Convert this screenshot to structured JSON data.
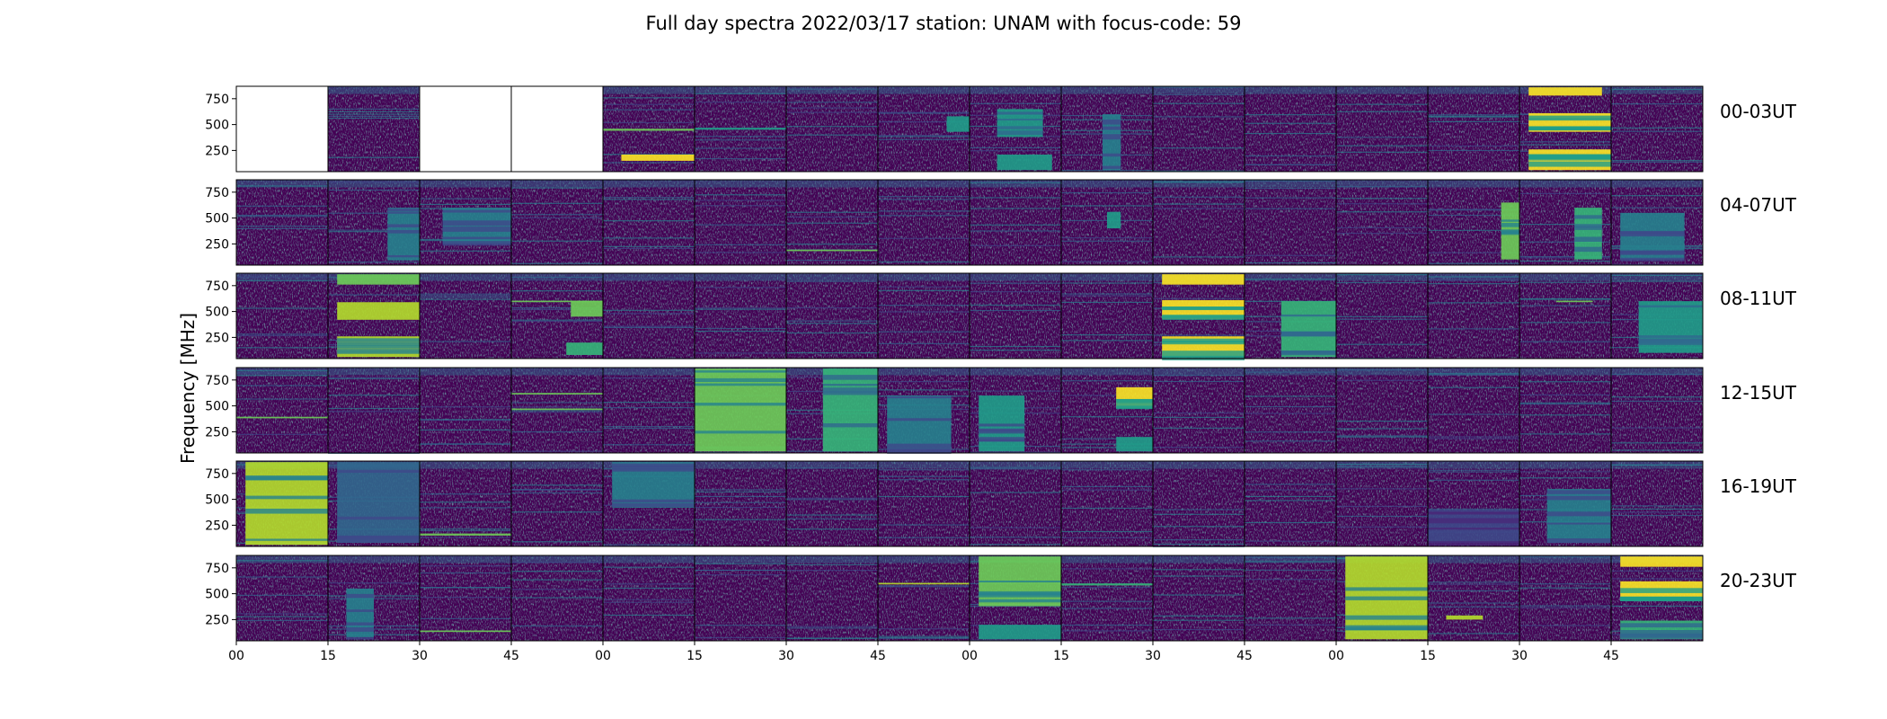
{
  "chart_data": {
    "type": "heatmap",
    "title": "Full day spectra 2022/03/17 station: UNAM with focus-code: 59",
    "ylabel": "Frequency [MHz]",
    "xlabel": "",
    "y_ticks": [
      "750",
      "500",
      "250"
    ],
    "y_tick_values": [
      750,
      500,
      250
    ],
    "ylim": [
      45,
      870
    ],
    "x_ticks": [
      "00",
      "15",
      "30",
      "45",
      "00",
      "15",
      "30",
      "45",
      "00",
      "15",
      "30",
      "45",
      "00",
      "15",
      "30",
      "45"
    ],
    "colormap": "viridis",
    "grid": false,
    "rows": [
      {
        "label": "00-03UT",
        "empty_panels": [
          0,
          2,
          3
        ],
        "bright": [
          {
            "panel": 4,
            "f0": 150,
            "f1": 210,
            "t0": 0.2,
            "t1": 1.0,
            "i": 0.95
          },
          {
            "panel": 4,
            "f0": 440,
            "f1": 460,
            "t0": 0.0,
            "t1": 1.0,
            "i": 0.8
          },
          {
            "panel": 5,
            "f0": 450,
            "f1": 470,
            "t0": 0.0,
            "t1": 1.0,
            "i": 0.6
          },
          {
            "panel": 7,
            "f0": 430,
            "f1": 580,
            "t0": 0.75,
            "t1": 1.0,
            "i": 0.6
          },
          {
            "panel": 8,
            "f0": 380,
            "f1": 650,
            "t0": 0.3,
            "t1": 0.8,
            "i": 0.55
          },
          {
            "panel": 8,
            "f0": 60,
            "f1": 210,
            "t0": 0.3,
            "t1": 0.9,
            "i": 0.55
          },
          {
            "panel": 9,
            "f0": 60,
            "f1": 600,
            "t0": 0.45,
            "t1": 0.65,
            "i": 0.4
          },
          {
            "panel": 14,
            "f0": 60,
            "f1": 260,
            "t0": 0.1,
            "t1": 1.0,
            "i": 0.95
          },
          {
            "panel": 14,
            "f0": 430,
            "f1": 610,
            "t0": 0.1,
            "t1": 1.0,
            "i": 0.95
          },
          {
            "panel": 14,
            "f0": 780,
            "f1": 860,
            "t0": 0.1,
            "t1": 0.9,
            "i": 0.95
          }
        ]
      },
      {
        "label": "04-07UT",
        "empty_panels": [],
        "bright": [
          {
            "panel": 1,
            "f0": 90,
            "f1": 600,
            "t0": 0.65,
            "t1": 1.0,
            "i": 0.45
          },
          {
            "panel": 2,
            "f0": 250,
            "f1": 600,
            "t0": 0.25,
            "t1": 1.0,
            "i": 0.4
          },
          {
            "panel": 6,
            "f0": 180,
            "f1": 195,
            "t0": 0.0,
            "t1": 1.0,
            "i": 0.8
          },
          {
            "panel": 9,
            "f0": 400,
            "f1": 560,
            "t0": 0.5,
            "t1": 0.65,
            "i": 0.5
          },
          {
            "panel": 13,
            "f0": 100,
            "f1": 650,
            "t0": 0.8,
            "t1": 1.0,
            "i": 0.75
          },
          {
            "panel": 14,
            "f0": 100,
            "f1": 600,
            "t0": 0.6,
            "t1": 0.9,
            "i": 0.65
          },
          {
            "panel": 15,
            "f0": 100,
            "f1": 550,
            "t0": 0.1,
            "t1": 0.8,
            "i": 0.4
          }
        ]
      },
      {
        "label": "08-11UT",
        "empty_panels": [],
        "bright": [
          {
            "panel": 1,
            "f0": 60,
            "f1": 260,
            "t0": 0.1,
            "t1": 1.0,
            "i": 0.85
          },
          {
            "panel": 1,
            "f0": 420,
            "f1": 590,
            "t0": 0.1,
            "t1": 1.0,
            "i": 0.85
          },
          {
            "panel": 1,
            "f0": 760,
            "f1": 860,
            "t0": 0.1,
            "t1": 1.0,
            "i": 0.8
          },
          {
            "panel": 3,
            "f0": 450,
            "f1": 600,
            "t0": 0.65,
            "t1": 1.0,
            "i": 0.8
          },
          {
            "panel": 3,
            "f0": 590,
            "f1": 605,
            "t0": 0.0,
            "t1": 1.0,
            "i": 0.75
          },
          {
            "panel": 3,
            "f0": 80,
            "f1": 200,
            "t0": 0.6,
            "t1": 1.0,
            "i": 0.7
          },
          {
            "panel": 10,
            "f0": 60,
            "f1": 260,
            "t0": 0.1,
            "t1": 1.0,
            "i": 0.95
          },
          {
            "panel": 10,
            "f0": 430,
            "f1": 610,
            "t0": 0.1,
            "t1": 1.0,
            "i": 0.95
          },
          {
            "panel": 10,
            "f0": 760,
            "f1": 860,
            "t0": 0.1,
            "t1": 1.0,
            "i": 0.95
          },
          {
            "panel": 11,
            "f0": 60,
            "f1": 600,
            "t0": 0.4,
            "t1": 1.0,
            "i": 0.7
          },
          {
            "panel": 14,
            "f0": 590,
            "f1": 605,
            "t0": 0.4,
            "t1": 0.8,
            "i": 0.75
          },
          {
            "panel": 15,
            "f0": 100,
            "f1": 600,
            "t0": 0.3,
            "t1": 1.0,
            "i": 0.55
          }
        ]
      },
      {
        "label": "12-15UT",
        "empty_panels": [],
        "bright": [
          {
            "panel": 0,
            "f0": 380,
            "f1": 395,
            "t0": 0.0,
            "t1": 1.0,
            "i": 0.75
          },
          {
            "panel": 3,
            "f0": 460,
            "f1": 475,
            "t0": 0.0,
            "t1": 1.0,
            "i": 0.8
          },
          {
            "panel": 3,
            "f0": 610,
            "f1": 625,
            "t0": 0.0,
            "t1": 1.0,
            "i": 0.8
          },
          {
            "panel": 5,
            "f0": 60,
            "f1": 860,
            "t0": 0.0,
            "t1": 1.0,
            "i": 0.75
          },
          {
            "panel": 6,
            "f0": 60,
            "f1": 860,
            "t0": 0.4,
            "t1": 1.0,
            "i": 0.7
          },
          {
            "panel": 7,
            "f0": 80,
            "f1": 600,
            "t0": 0.1,
            "t1": 0.8,
            "i": 0.45
          },
          {
            "panel": 8,
            "f0": 60,
            "f1": 600,
            "t0": 0.1,
            "t1": 0.6,
            "i": 0.5
          },
          {
            "panel": 9,
            "f0": 480,
            "f1": 680,
            "t0": 0.6,
            "t1": 1.0,
            "i": 0.95
          },
          {
            "panel": 9,
            "f0": 60,
            "f1": 200,
            "t0": 0.6,
            "t1": 1.0,
            "i": 0.6
          }
        ]
      },
      {
        "label": "16-19UT",
        "empty_panels": [],
        "bright": [
          {
            "panel": 0,
            "f0": 60,
            "f1": 860,
            "t0": 0.1,
            "t1": 1.0,
            "i": 0.9
          },
          {
            "panel": 1,
            "f0": 80,
            "f1": 860,
            "t0": 0.1,
            "t1": 1.0,
            "i": 0.35
          },
          {
            "panel": 2,
            "f0": 150,
            "f1": 170,
            "t0": 0.0,
            "t1": 1.0,
            "i": 0.8
          },
          {
            "panel": 4,
            "f0": 420,
            "f1": 860,
            "t0": 0.1,
            "t1": 1.0,
            "i": 0.45
          },
          {
            "panel": 13,
            "f0": 80,
            "f1": 400,
            "t0": 0.0,
            "t1": 1.0,
            "i": 0.25
          },
          {
            "panel": 14,
            "f0": 80,
            "f1": 600,
            "t0": 0.3,
            "t1": 1.0,
            "i": 0.45
          }
        ]
      },
      {
        "label": "20-23UT",
        "empty_panels": [],
        "bright": [
          {
            "panel": 1,
            "f0": 80,
            "f1": 550,
            "t0": 0.2,
            "t1": 0.5,
            "i": 0.45
          },
          {
            "panel": 2,
            "f0": 130,
            "f1": 145,
            "t0": 0.0,
            "t1": 1.0,
            "i": 0.75
          },
          {
            "panel": 7,
            "f0": 590,
            "f1": 605,
            "t0": 0.0,
            "t1": 1.0,
            "i": 0.85
          },
          {
            "panel": 8,
            "f0": 380,
            "f1": 860,
            "t0": 0.1,
            "t1": 1.0,
            "i": 0.75
          },
          {
            "panel": 8,
            "f0": 60,
            "f1": 200,
            "t0": 0.1,
            "t1": 1.0,
            "i": 0.55
          },
          {
            "panel": 9,
            "f0": 580,
            "f1": 600,
            "t0": 0.0,
            "t1": 1.0,
            "i": 0.7
          },
          {
            "panel": 12,
            "f0": 60,
            "f1": 860,
            "t0": 0.1,
            "t1": 1.0,
            "i": 0.9
          },
          {
            "panel": 13,
            "f0": 250,
            "f1": 290,
            "t0": 0.2,
            "t1": 0.6,
            "i": 0.9
          },
          {
            "panel": 15,
            "f0": 60,
            "f1": 240,
            "t0": 0.1,
            "t1": 1.0,
            "i": 0.7
          },
          {
            "panel": 15,
            "f0": 430,
            "f1": 620,
            "t0": 0.1,
            "t1": 1.0,
            "i": 0.95
          },
          {
            "panel": 15,
            "f0": 760,
            "f1": 860,
            "t0": 0.1,
            "t1": 1.0,
            "i": 0.95
          }
        ]
      }
    ]
  }
}
